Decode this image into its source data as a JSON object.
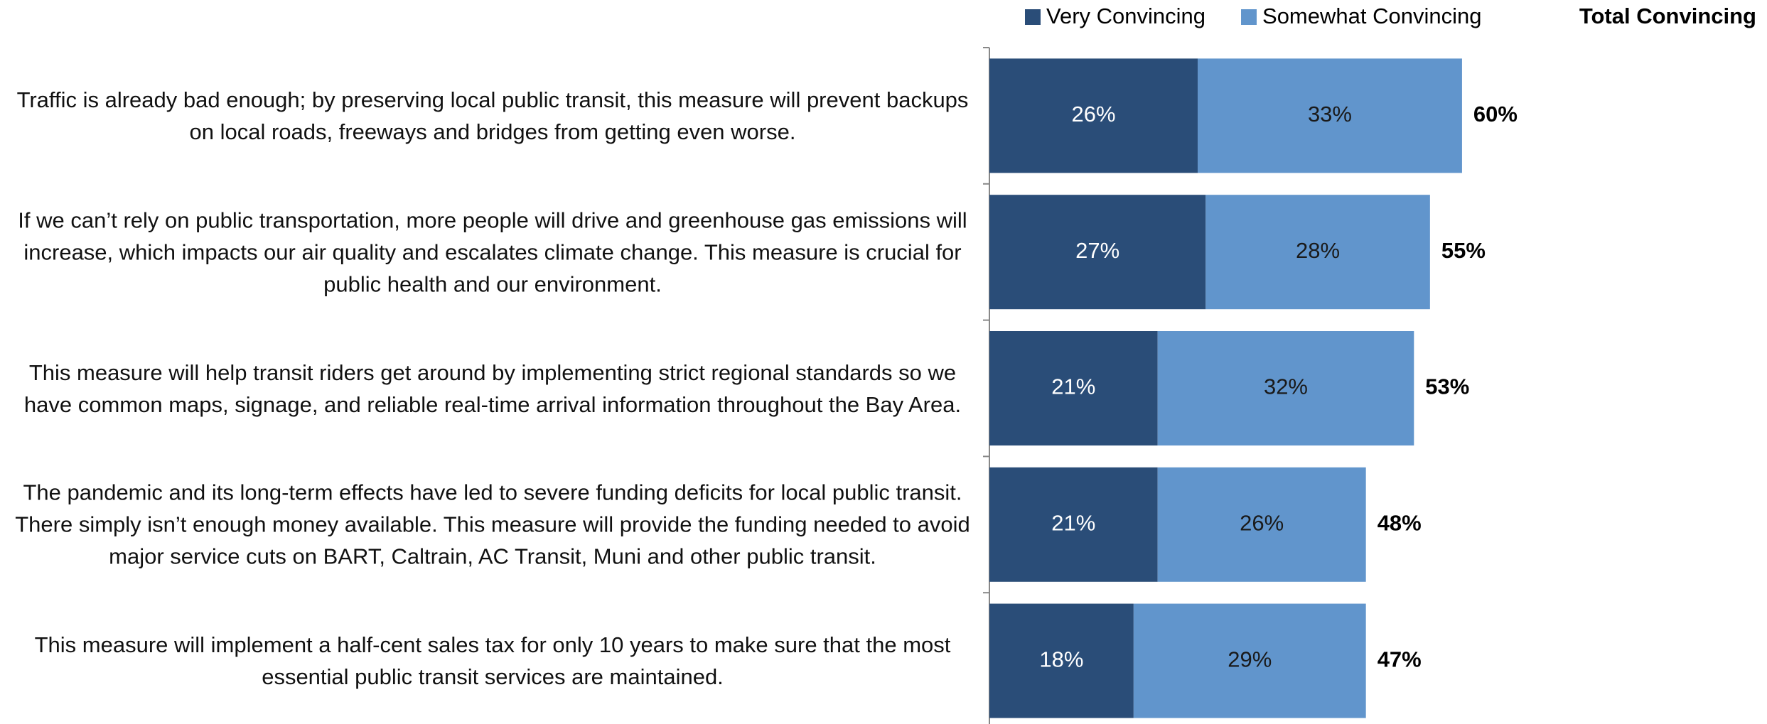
{
  "chart_data": {
    "type": "bar",
    "orientation": "horizontal",
    "stacked": true,
    "categories": [
      "Traffic is already bad enough; by preserving local public transit, this measure will prevent backups on local roads, freeways and bridges from getting even worse.",
      "If we can’t rely on public transportation, more people will drive and greenhouse gas emissions will increase, which impacts our air quality and escalates climate change. This measure is crucial for public health and our environment.",
      "This measure will help transit riders get around by implementing strict regional standards so we have common maps, signage, and reliable real-time arrival information throughout the Bay Area.",
      "The pandemic and its long-term effects have led to severe funding deficits for local public transit. There simply isn’t enough money available. This measure will provide the funding needed to avoid major service cuts on BART, Caltrain, AC Transit, Muni and other public transit.",
      "This measure will implement a half-cent sales tax for only 10 years to make sure that the most essential public transit services are maintained."
    ],
    "series": [
      {
        "name": "Very Convincing",
        "color": "#2a4d78",
        "label_color": "#ffffff",
        "values": [
          26,
          27,
          21,
          21,
          18
        ],
        "value_labels": [
          "26%",
          "27%",
          "21%",
          "21%",
          "18%"
        ]
      },
      {
        "name": "Somewhat Convincing",
        "color": "#6195cc",
        "label_color": "#1a1a1a",
        "values": [
          33,
          28,
          32,
          26,
          29
        ],
        "value_labels": [
          "33%",
          "28%",
          "32%",
          "26%",
          "29%"
        ]
      }
    ],
    "totals_title": "Total Convincing",
    "totals": [
      60,
      55,
      53,
      48,
      47
    ],
    "total_labels": [
      "60%",
      "55%",
      "53%",
      "48%",
      "47%"
    ]
  }
}
